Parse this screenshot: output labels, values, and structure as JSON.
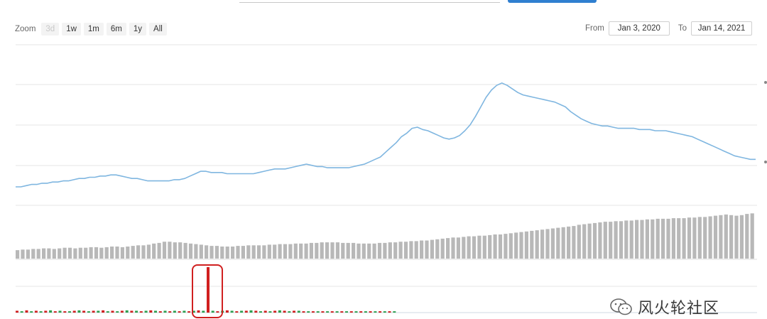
{
  "toolbar": {
    "zoom_label": "Zoom",
    "zoom_buttons": [
      "3d",
      "1w",
      "1m",
      "6m",
      "1y",
      "All"
    ],
    "from_label": "From",
    "from_value": "Jan 3, 2020",
    "to_label": "To",
    "to_value": "Jan 14, 2021"
  },
  "watermark": {
    "text": "风火轮社区"
  },
  "colors": {
    "price_line": "#7fb6e0",
    "volume_bar": "#b8b8b8",
    "highlight": "#d02020",
    "grid": "#e6e6e6"
  },
  "chart_data": [
    {
      "type": "line",
      "name": "price",
      "x_range": [
        "2020-01-03",
        "2021-01-14"
      ],
      "grid": true,
      "legend": "none",
      "ylim": [
        0,
        100
      ],
      "values": [
        3,
        3,
        4,
        5,
        5,
        6,
        6,
        7,
        7,
        8,
        8,
        9,
        10,
        10,
        11,
        11,
        12,
        12,
        13,
        13,
        12,
        11,
        10,
        10,
        9,
        8,
        8,
        8,
        8,
        8,
        9,
        9,
        10,
        12,
        14,
        16,
        16,
        15,
        15,
        15,
        14,
        14,
        14,
        14,
        14,
        14,
        15,
        16,
        17,
        18,
        18,
        18,
        19,
        20,
        21,
        22,
        21,
        20,
        20,
        19,
        19,
        19,
        19,
        19,
        20,
        21,
        22,
        24,
        26,
        28,
        32,
        36,
        40,
        45,
        48,
        52,
        53,
        51,
        50,
        48,
        46,
        44,
        43,
        44,
        46,
        50,
        55,
        62,
        70,
        78,
        84,
        88,
        90,
        88,
        85,
        82,
        80,
        79,
        78,
        77,
        76,
        75,
        74,
        72,
        70,
        66,
        63,
        60,
        58,
        56,
        55,
        54,
        54,
        53,
        52,
        52,
        52,
        52,
        51,
        51,
        51,
        50,
        50,
        50,
        49,
        48,
        47,
        46,
        45,
        43,
        41,
        39,
        37,
        35,
        33,
        31,
        29,
        28,
        27,
        26,
        26
      ]
    },
    {
      "type": "bar",
      "name": "volume",
      "ylim": [
        0,
        100
      ],
      "values": [
        14,
        15,
        15,
        16,
        16,
        17,
        17,
        16,
        17,
        18,
        18,
        17,
        18,
        18,
        19,
        19,
        18,
        19,
        20,
        20,
        19,
        20,
        21,
        22,
        22,
        23,
        25,
        26,
        28,
        28,
        27,
        27,
        26,
        25,
        24,
        23,
        22,
        21,
        21,
        20,
        20,
        20,
        21,
        21,
        22,
        22,
        22,
        22,
        23,
        23,
        24,
        24,
        24,
        25,
        25,
        25,
        26,
        26,
        27,
        27,
        27,
        27,
        26,
        26,
        26,
        25,
        25,
        25,
        25,
        26,
        26,
        27,
        27,
        28,
        28,
        29,
        29,
        30,
        30,
        31,
        32,
        33,
        34,
        35,
        35,
        36,
        37,
        37,
        38,
        38,
        39,
        40,
        40,
        41,
        42,
        43,
        44,
        45,
        46,
        47,
        48,
        49,
        50,
        51,
        52,
        53,
        54,
        56,
        57,
        58,
        59,
        60,
        61,
        61,
        62,
        62,
        63,
        63,
        64,
        64,
        65,
        65,
        66,
        66,
        66,
        67,
        67,
        67,
        68,
        68,
        69,
        69,
        70,
        71,
        72,
        73,
        72,
        71,
        72,
        74,
        75
      ]
    },
    {
      "type": "bar",
      "name": "indicator",
      "ylim": [
        0,
        100
      ],
      "values": [
        4,
        3,
        5,
        3,
        4,
        3,
        4,
        5,
        3,
        4,
        3,
        3,
        4,
        5,
        4,
        3,
        4,
        4,
        5,
        3,
        4,
        3,
        4,
        5,
        4,
        4,
        3,
        4,
        5,
        4,
        3,
        4,
        3,
        4,
        3,
        4,
        3,
        4,
        5,
        4,
        100,
        4,
        3,
        4,
        5,
        4,
        3,
        4,
        4,
        5,
        4,
        3,
        4,
        3,
        4,
        5,
        4,
        3,
        4,
        4,
        3,
        3,
        3,
        3,
        3,
        3,
        3,
        3,
        3,
        3,
        3,
        3,
        3,
        3,
        3,
        3,
        3,
        3,
        3,
        3
      ],
      "highlight_index": 40
    }
  ]
}
